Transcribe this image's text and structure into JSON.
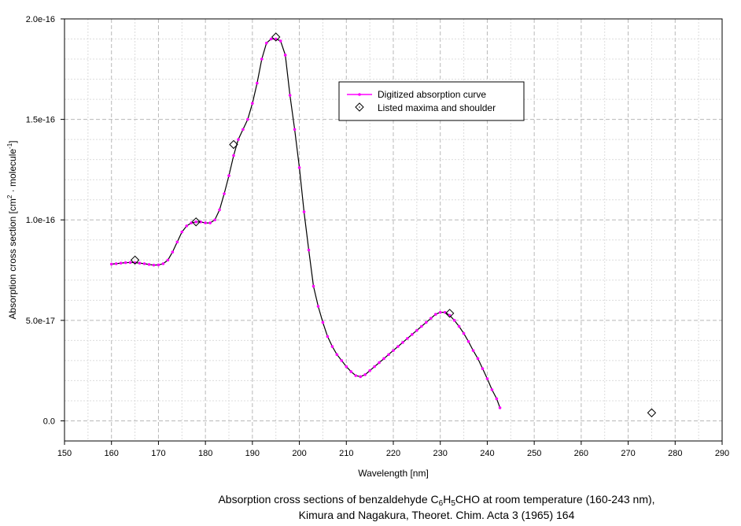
{
  "chart_data": {
    "type": "line",
    "xlabel": "Wavelength [nm]",
    "ylabel_parts": [
      "Absorption cross section [cm",
      "2",
      " · molecule",
      "-1",
      "]"
    ],
    "xlim": [
      150,
      290
    ],
    "ylim": [
      -1e-17,
      2e-16
    ],
    "x_ticks": [
      150,
      160,
      170,
      180,
      190,
      200,
      210,
      220,
      230,
      240,
      250,
      260,
      270,
      280,
      290
    ],
    "y_ticks": [
      {
        "value": 0,
        "label": "0.0"
      },
      {
        "value": 5e-17,
        "label": "5.0e-17"
      },
      {
        "value": 1e-16,
        "label": "1.0e-16"
      },
      {
        "value": 1.5e-16,
        "label": "1.5e-16"
      },
      {
        "value": 2e-16,
        "label": "2.0e-16"
      }
    ],
    "grid": true,
    "legend_position": "top-right inside",
    "series": [
      {
        "name": "Digitized absorption curve",
        "style": "line-with-dots",
        "color": "#ff00ff",
        "line_color": "#000000",
        "x": [
          160,
          161,
          162,
          163,
          164,
          165,
          166,
          167,
          168,
          169,
          170,
          171,
          172,
          173,
          174,
          175,
          176,
          177,
          178,
          179,
          180,
          181,
          182,
          183,
          184,
          185,
          186,
          187,
          188,
          189,
          190,
          191,
          192,
          193,
          194,
          195,
          196,
          197,
          198,
          199,
          200,
          201,
          202,
          203,
          204,
          205,
          206,
          207,
          208,
          209,
          210,
          211,
          212,
          213,
          214,
          215,
          216,
          217,
          218,
          219,
          220,
          221,
          222,
          223,
          224,
          225,
          226,
          227,
          228,
          229,
          230,
          231,
          232,
          233,
          234,
          235,
          236,
          237,
          238,
          239,
          240,
          241,
          242,
          242.7
        ],
        "y": [
          7.8e-17,
          7.82e-17,
          7.85e-17,
          7.87e-17,
          7.88e-17,
          7.87e-17,
          7.85e-17,
          7.82e-17,
          7.78e-17,
          7.75e-17,
          7.76e-17,
          7.82e-17,
          8e-17,
          8.4e-17,
          8.9e-17,
          9.4e-17,
          9.7e-17,
          9.85e-17,
          9.9e-17,
          9.9e-17,
          9.85e-17,
          9.85e-17,
          1e-16,
          1.05e-16,
          1.13e-16,
          1.22e-16,
          1.32e-16,
          1.4e-16,
          1.45e-16,
          1.5e-16,
          1.58e-16,
          1.68e-16,
          1.8e-16,
          1.88e-16,
          1.9e-16,
          1.9e-16,
          1.89e-16,
          1.82e-16,
          1.62e-16,
          1.45e-16,
          1.26e-16,
          1.04e-16,
          8.5e-17,
          6.7e-17,
          5.7e-17,
          4.9e-17,
          4.2e-17,
          3.7e-17,
          3.3e-17,
          3e-17,
          2.7e-17,
          2.45e-17,
          2.25e-17,
          2.2e-17,
          2.3e-17,
          2.5e-17,
          2.7e-17,
          2.9e-17,
          3.1e-17,
          3.3e-17,
          3.5e-17,
          3.7e-17,
          3.9e-17,
          4.1e-17,
          4.3e-17,
          4.5e-17,
          4.7e-17,
          4.9e-17,
          5.1e-17,
          5.3e-17,
          5.4e-17,
          5.4e-17,
          5.25e-17,
          5e-17,
          4.7e-17,
          4.35e-17,
          3.95e-17,
          3.5e-17,
          3.1e-17,
          2.6e-17,
          2.1e-17,
          1.55e-17,
          1.1e-17,
          6.5e-18
        ]
      },
      {
        "name": "Listed maxima and shoulder",
        "style": "open-diamond",
        "color": "#000000",
        "x": [
          165,
          178,
          186,
          195,
          232,
          275
        ],
        "y": [
          8e-17,
          9.9e-17,
          1.375e-16,
          1.91e-16,
          5.35e-17,
          4e-18
        ]
      }
    ]
  },
  "caption": {
    "line1_parts": [
      "Absorption cross sections of benzaldehyde C",
      "6",
      "H",
      "5",
      "CHO at room temperature (160-243 nm),"
    ],
    "line2": "Kimura and Nagakura, Theoret. Chim. Acta  3 (1965) 164"
  }
}
